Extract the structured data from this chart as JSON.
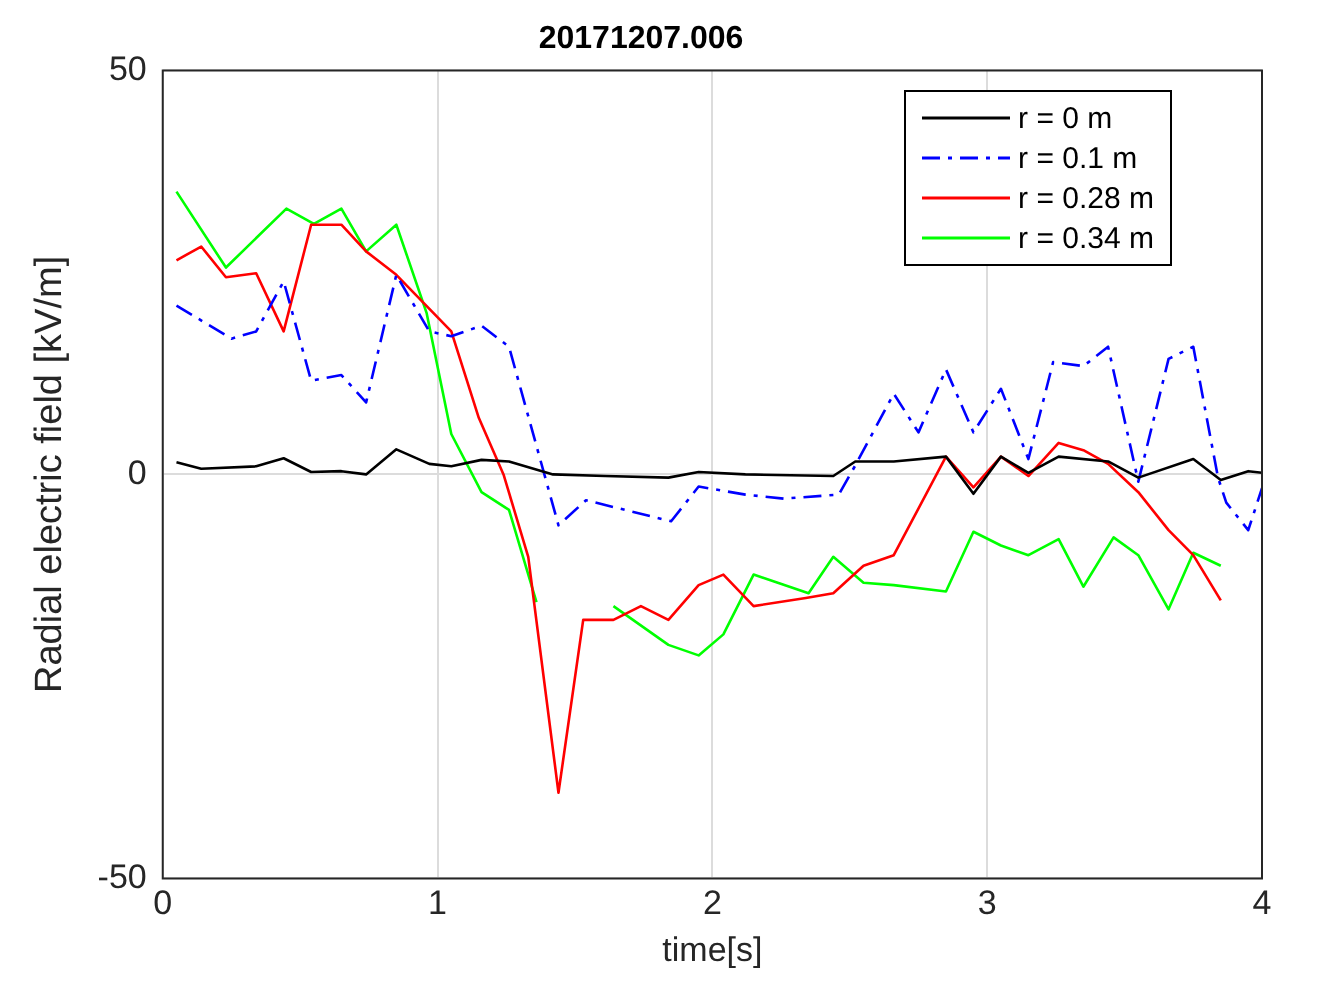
{
  "chart_data": {
    "type": "line",
    "title": "20171207.006",
    "xlabel": "time[s]",
    "ylabel": "Radial electric field [kV/m]",
    "xlim": [
      0,
      4
    ],
    "xticks": [
      0,
      1,
      2,
      3,
      4
    ],
    "ylim": [
      -50,
      50
    ],
    "yticks": [
      -50,
      0,
      50
    ],
    "grid": true,
    "legend": "top right",
    "marker": "none",
    "series": [
      {
        "name": "r = 0 m",
        "color": "#000000",
        "line_style": "solid",
        "x": [
          0.05,
          0.14,
          0.34,
          0.44,
          0.54,
          0.65,
          0.74,
          0.85,
          0.97,
          1.05,
          1.16,
          1.26,
          1.42,
          1.61,
          1.84,
          1.95,
          2.12,
          2.44,
          2.52,
          2.66,
          2.85,
          2.95,
          3.05,
          3.15,
          3.26,
          3.44,
          3.55,
          3.75,
          3.85,
          3.95,
          4.0
        ],
        "values": [
          1.5,
          0.7,
          1,
          2,
          0.3,
          0.4,
          0,
          3.1,
          1.3,
          1,
          1.8,
          1.6,
          0,
          -0.2,
          -0.4,
          0.3,
          0,
          -0.2,
          1.6,
          1.6,
          2.2,
          -2.4,
          2.2,
          0.2,
          2.2,
          1.6,
          -0.4,
          1.9,
          -0.7,
          0.4,
          0.2
        ]
      },
      {
        "name": "r = 0.1 m",
        "color": "#0000ff",
        "line_style": "dashdot",
        "x": [
          0.05,
          0.25,
          0.34,
          0.44,
          0.54,
          0.65,
          0.74,
          0.85,
          0.97,
          1.05,
          1.16,
          1.26,
          1.44,
          1.54,
          1.85,
          1.95,
          2.12,
          2.26,
          2.46,
          2.52,
          2.66,
          2.75,
          2.85,
          2.95,
          3.05,
          3.15,
          3.24,
          3.35,
          3.44,
          3.55,
          3.66,
          3.75,
          3.84,
          3.87,
          3.95,
          4.0
        ],
        "values": [
          20.9,
          16.8,
          17.7,
          23.9,
          11.6,
          12.3,
          8.9,
          24.7,
          17.7,
          17.1,
          18.4,
          15.8,
          -6.3,
          -3.2,
          -5.8,
          -1.5,
          -2.5,
          -3,
          -2.5,
          1.1,
          10,
          5.2,
          13,
          5.2,
          10.6,
          1.9,
          13.9,
          13.4,
          15.8,
          -0.9,
          14.3,
          15.8,
          -0.4,
          -3.5,
          -6.9,
          -1.7
        ]
      },
      {
        "name": "r = 0.28 m",
        "color": "#ff0000",
        "line_style": "solid",
        "x": [
          0.05,
          0.14,
          0.23,
          0.34,
          0.44,
          0.54,
          0.65,
          0.74,
          0.85,
          1.05,
          1.15,
          1.24,
          1.33,
          1.44,
          1.53,
          1.64,
          1.74,
          1.84,
          1.95,
          2.04,
          2.15,
          2.34,
          2.44,
          2.55,
          2.66,
          2.85,
          2.95,
          3.05,
          3.15,
          3.26,
          3.35,
          3.44,
          3.55,
          3.66,
          3.75,
          3.85
        ],
        "values": [
          26.5,
          28.2,
          24.4,
          24.9,
          17.7,
          30.9,
          30.9,
          27.6,
          24.7,
          17.7,
          7,
          0,
          -10.2,
          -39.4,
          -18,
          -18,
          -16.3,
          -18,
          -13.7,
          -12.4,
          -16.3,
          -15.3,
          -14.7,
          -11.3,
          -10,
          2.2,
          -1.6,
          2.2,
          -0.2,
          3.9,
          3,
          1.3,
          -2.2,
          -6.9,
          -10,
          -15.6
        ]
      },
      {
        "name": "r = 0.34 m",
        "color": "#00ff00",
        "line_style": "solid",
        "x": [
          0.05,
          0.23,
          0.45,
          0.55,
          0.65,
          0.74,
          0.85,
          0.96,
          1.05,
          1.16,
          1.26,
          1.36,
          1.5,
          1.64,
          1.84,
          1.95,
          2.04,
          2.15,
          2.35,
          2.44,
          2.55,
          2.66,
          2.85,
          2.95,
          3.05,
          3.15,
          3.26,
          3.35,
          3.46,
          3.55,
          3.66,
          3.75,
          3.85
        ],
        "values": [
          35,
          25.6,
          32.9,
          31,
          32.9,
          27.6,
          30.9,
          20,
          5,
          -2.2,
          -4.4,
          -15.8,
          null,
          -16.3,
          -21.1,
          -22.4,
          -19.8,
          -12.4,
          -14.7,
          -10.2,
          -13.4,
          -13.7,
          -14.5,
          -7.1,
          -8.8,
          -10,
          -8,
          -13.9,
          -7.8,
          -10,
          -16.7,
          -9.7,
          -11.3
        ]
      }
    ]
  }
}
